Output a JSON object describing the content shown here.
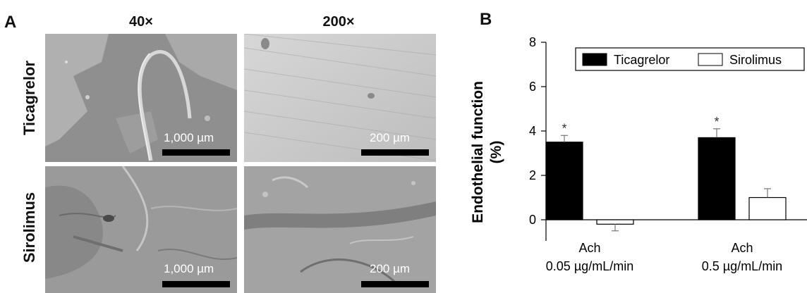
{
  "panel_a": {
    "letter": "A",
    "columns": [
      "40×",
      "200×"
    ],
    "rows": [
      "Ticagrelor",
      "Sirolimus"
    ],
    "scale_labels": {
      "low_mag": "1,000 µm",
      "high_mag": "200 µm"
    }
  },
  "panel_b": {
    "letter": "B"
  },
  "chart_data": {
    "type": "bar",
    "ylabel": "Endothelial function (%)",
    "ylabel_lines": [
      "Endothelial function",
      "(%)"
    ],
    "ylim": [
      0,
      8
    ],
    "yticks": [
      0,
      2,
      4,
      6,
      8
    ],
    "categories": [
      {
        "line1": "Ach",
        "line2": "0.05 µg/mL/min"
      },
      {
        "line1": "Ach",
        "line2": "0.5 µg/mL/min"
      }
    ],
    "series": [
      {
        "name": "Ticagrelor",
        "values": [
          3.5,
          3.7
        ],
        "errors": [
          0.3,
          0.4
        ],
        "fill": "#000000",
        "markers": [
          "*",
          "*"
        ]
      },
      {
        "name": "Sirolimus",
        "values": [
          -0.2,
          1.0
        ],
        "errors": [
          0.3,
          0.4
        ],
        "fill": "#ffffff",
        "markers": [
          "",
          ""
        ]
      }
    ],
    "legend_position": "top",
    "grid": false
  }
}
